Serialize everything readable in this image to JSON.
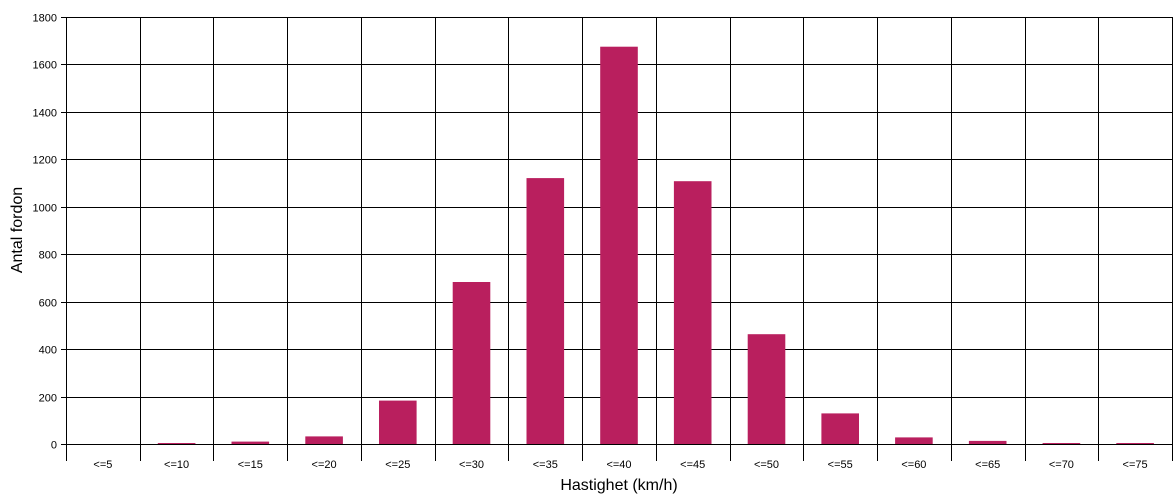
{
  "chart_data": {
    "type": "bar",
    "title": "",
    "xlabel": "Hastighet (km/h)",
    "ylabel": "Antal fordon",
    "categories": [
      "<=5",
      "<=10",
      "<=15",
      "<=20",
      "<=25",
      "<=30",
      "<=35",
      "<=40",
      "<=45",
      "<=50",
      "<=55",
      "<=60",
      "<=65",
      "<=70",
      "<=75"
    ],
    "values": [
      0,
      3,
      10,
      32,
      183,
      683,
      1121,
      1675,
      1108,
      463,
      129,
      28,
      13,
      2,
      1
    ],
    "yticks": [
      0,
      200,
      400,
      600,
      800,
      1000,
      1200,
      1400,
      1600,
      1800
    ],
    "ylim": [
      0,
      1800
    ],
    "grid": true,
    "legend": "none",
    "colors": {
      "bar": "#B91F5E",
      "grid": "#000000"
    }
  }
}
